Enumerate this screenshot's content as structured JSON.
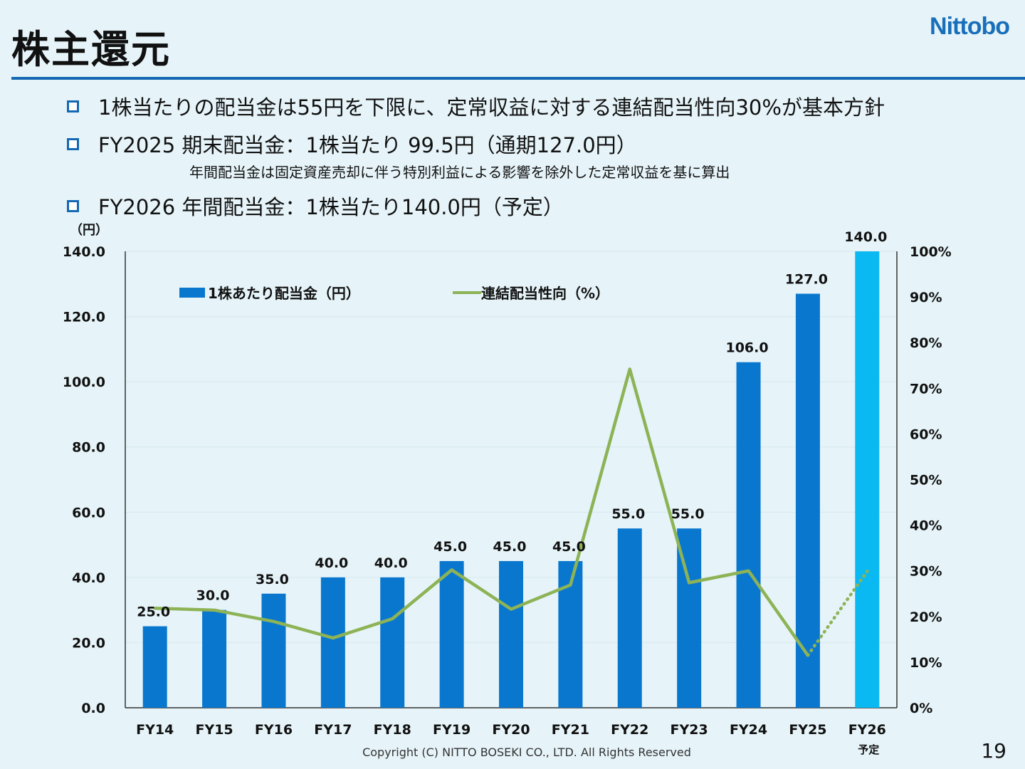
{
  "header": {
    "title": "株主還元",
    "logo": "Nittobo"
  },
  "bullets": [
    {
      "text": "1株当たりの配当金は55円を下限に、定常収益に対する連結配当性向30%が基本方針"
    },
    {
      "text": "FY2025 期末配当金：1株当たり 99.5円（通期127.0円）"
    },
    {
      "text": "FY2026 年間配当金：1株当たり140.0円（予定）"
    }
  ],
  "sub_note": "年間配当金は固定資産売却に伴う特別利益による影響を除外した定常収益を基に算出",
  "chart_data": {
    "type": "bar",
    "categories": [
      "FY14",
      "FY15",
      "FY16",
      "FY17",
      "FY18",
      "FY19",
      "FY20",
      "FY21",
      "FY22",
      "FY23",
      "FY24",
      "FY25",
      "FY26"
    ],
    "category_sublabels": {
      "FY26": "予定"
    },
    "y_unit_label": "（円）",
    "ylim": [
      0,
      140
    ],
    "y_ticks": [
      "0.0",
      "20.0",
      "40.0",
      "60.0",
      "80.0",
      "100.0",
      "120.0",
      "140.0"
    ],
    "y2lim": [
      0,
      100
    ],
    "y2_ticks": [
      "0%",
      "10%",
      "20%",
      "30%",
      "40%",
      "50%",
      "60%",
      "70%",
      "80%",
      "90%",
      "100%"
    ],
    "series": [
      {
        "name": "1株あたり配当金（円）",
        "type": "bar",
        "axis": "left",
        "values": [
          25.0,
          30.0,
          35.0,
          40.0,
          40.0,
          45.0,
          45.0,
          45.0,
          55.0,
          55.0,
          106.0,
          127.0,
          140.0
        ],
        "labels": [
          "25.0",
          "30.0",
          "35.0",
          "40.0",
          "40.0",
          "45.0",
          "45.0",
          "45.0",
          "55.0",
          "55.0",
          "106.0",
          "127.0",
          "140.0"
        ],
        "color": "#0a77cf",
        "highlight_color": "#0ab9f2",
        "highlight_index": 12
      },
      {
        "name": "連結配当性向（%）",
        "type": "line",
        "axis": "right",
        "values": [
          21.8,
          21.4,
          18.9,
          15.3,
          19.5,
          30.2,
          21.6,
          26.9,
          74.2,
          27.4,
          30.0,
          11.5,
          29.9
        ],
        "dashed_from_index": 11,
        "color": "#8db356"
      }
    ],
    "legend_position": "top-left",
    "grid": true
  },
  "footer": {
    "copyright": "Copyright (C)  NITTO BOSEKI CO., LTD. All Rights Reserved",
    "page_number": "19"
  }
}
